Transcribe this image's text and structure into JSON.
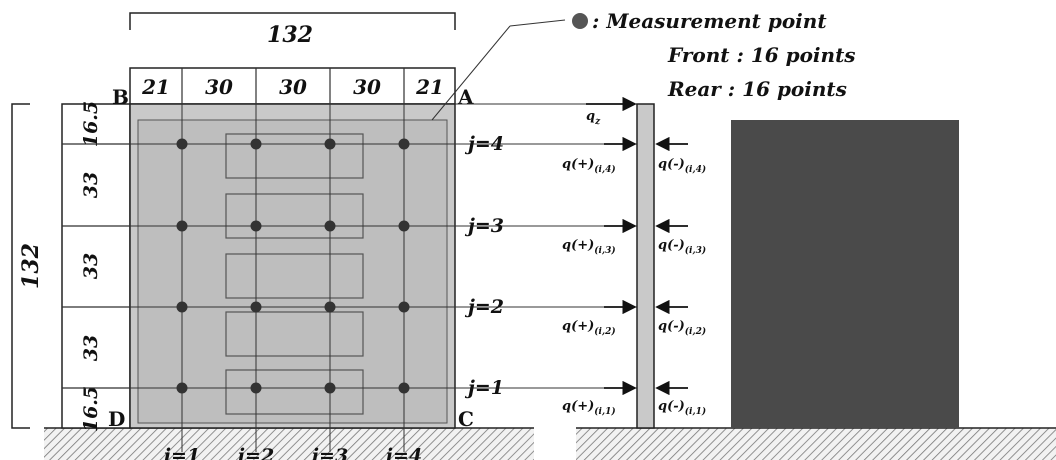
{
  "dimensions": {
    "total_width": "132",
    "column_widths": [
      "21",
      "30",
      "30",
      "30",
      "21"
    ],
    "total_height": "132",
    "row_heights": [
      "16.5",
      "33",
      "33",
      "33",
      "16.5"
    ]
  },
  "corners": {
    "top_left": "B",
    "top_right": "A",
    "bottom_left": "D",
    "bottom_right": "C"
  },
  "legend": {
    "marker_label": ": Measurement point",
    "front": "Front : 16 points",
    "rear": "Rear : 16 points"
  },
  "row_labels": [
    "j=4",
    "j=3",
    "j=2",
    "j=1"
  ],
  "column_labels": [
    "i=1",
    "i=2",
    "i=3",
    "i=4"
  ],
  "side_view": {
    "top_load_label": "q",
    "top_load_sub": "z",
    "front_pressure_labels": [
      {
        "main": "q(+)",
        "sub": "(i,4)"
      },
      {
        "main": "q(+)",
        "sub": "(i,3)"
      },
      {
        "main": "q(+)",
        "sub": "(i,2)"
      },
      {
        "main": "q(+)",
        "sub": "(i,1)"
      }
    ],
    "rear_pressure_labels": [
      {
        "main": "q(-)",
        "sub": "(i,4)"
      },
      {
        "main": "q(-)",
        "sub": "(i,3)"
      },
      {
        "main": "q(-)",
        "sub": "(i,2)"
      },
      {
        "main": "q(-)",
        "sub": "(i,1)"
      }
    ]
  },
  "colors": {
    "panel_fill": "#c9c9c9",
    "inner_fill": "#bdbdbd",
    "block_fill": "#4a4a4a",
    "marker": "#333333",
    "line": "#222222"
  }
}
